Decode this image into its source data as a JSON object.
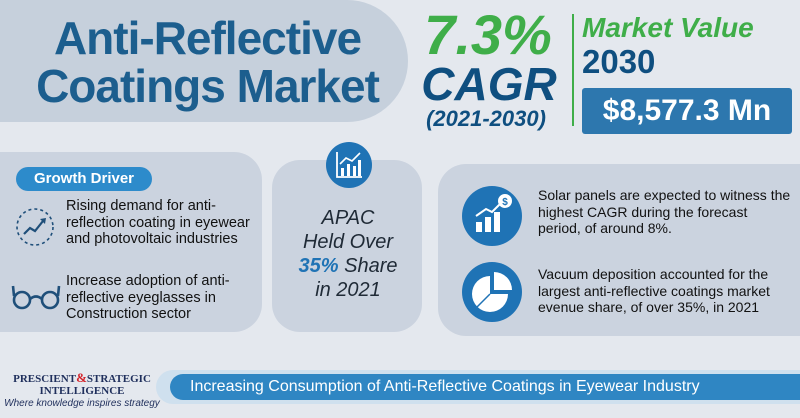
{
  "title": {
    "line1": "Anti-Reflective",
    "line2": "Coatings Market"
  },
  "cagr": {
    "value": "7.3%",
    "label": "CAGR",
    "period": "(2021-2030)"
  },
  "market_value": {
    "label": "Market Value",
    "year": "2030",
    "amount": "$8,577.3 Mn"
  },
  "growth_driver": {
    "button_label": "Growth Driver",
    "items": [
      {
        "text": "Rising demand for anti-reflection coating in eyewear and photovoltaic industries",
        "icon": "growth-chart-icon"
      },
      {
        "text": "Increase adoption of anti-reflective eyeglasses in Construction sector",
        "icon": "eyeglasses-icon"
      }
    ]
  },
  "apac": {
    "line1": "APAC",
    "line2": "Held Over",
    "highlight": "35%",
    "line3_rest": " Share",
    "line4": "in 2021",
    "icon": "bar-chart-icon"
  },
  "insights": [
    {
      "text": "Solar panels are expected to witness the highest CAGR during the forecast period, of around 8%.",
      "icon": "dollar-growth-icon"
    },
    {
      "text": "Vacuum deposition accounted for the largest anti-reflective coatings market evenue share, of over 35%, in 2021",
      "icon": "pie-chart-icon"
    }
  ],
  "footer": {
    "banner": "Increasing Consumption of Anti-Reflective Coatings in Eyewear Industry"
  },
  "logo": {
    "line1_a": "PRESCIENT",
    "amp": "&",
    "line1_b": "STRATEGIC",
    "line2": "INTELLIGENCE",
    "tagline": "Where knowledge inspires strategy"
  },
  "colors": {
    "green": "#3fae49",
    "navy": "#0f4f80",
    "blue": "#1f73b5",
    "panel": "#cbd3df",
    "background": "#e4e8ee"
  }
}
